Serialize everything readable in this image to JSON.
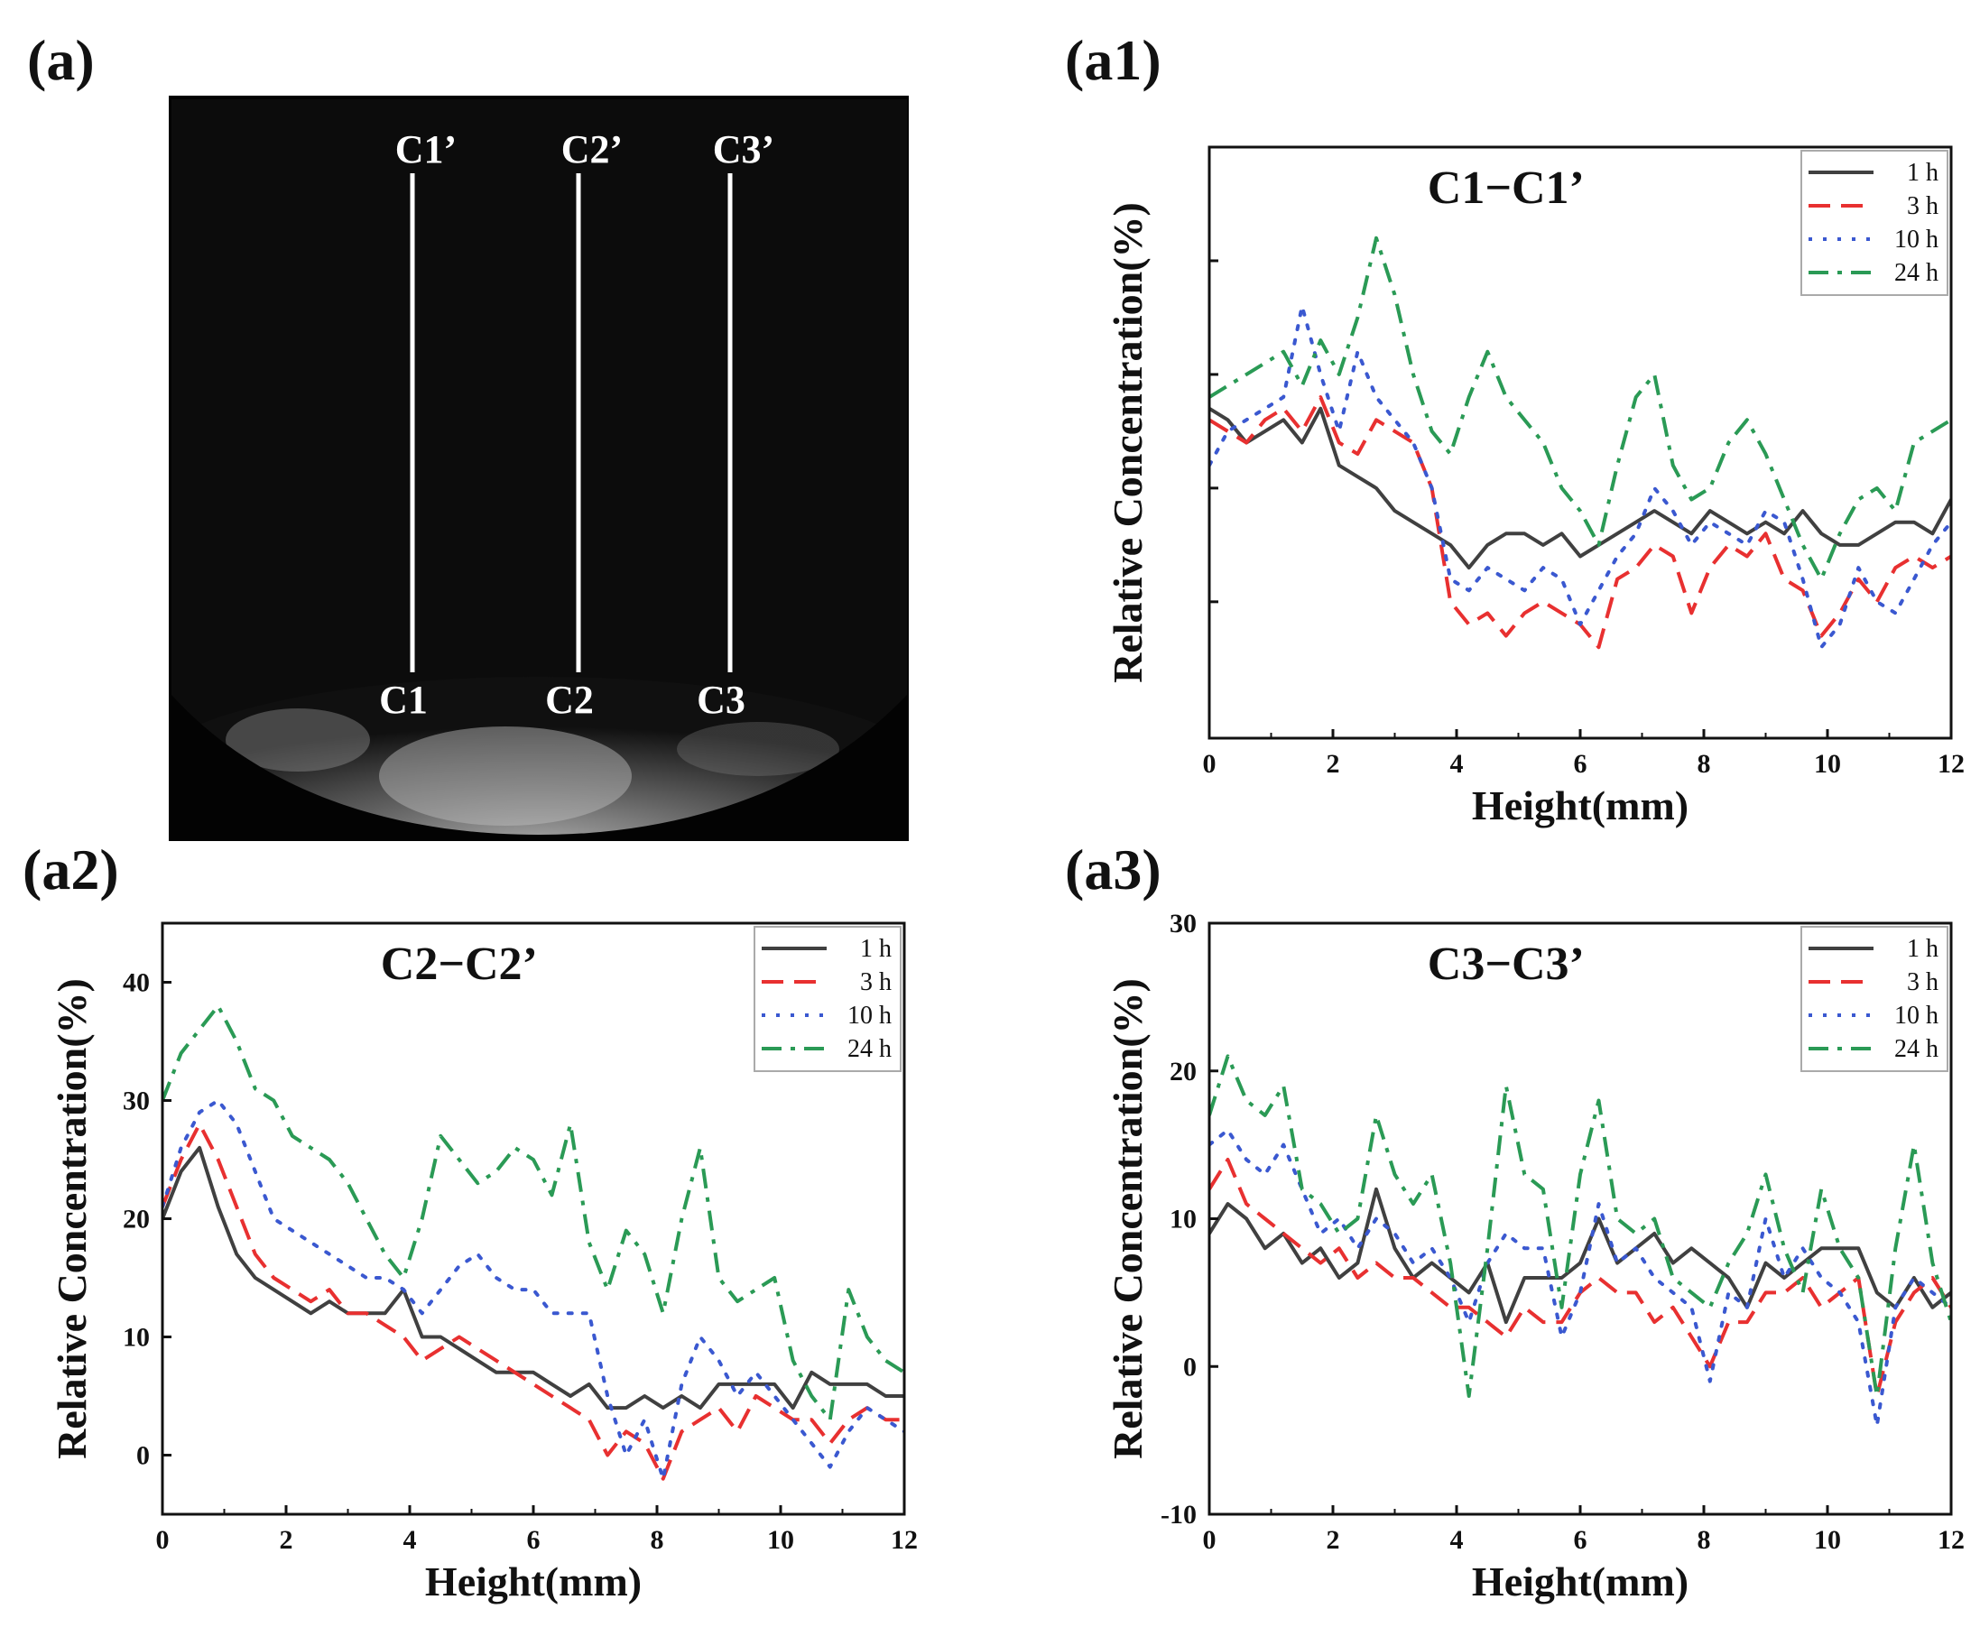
{
  "panel_labels": {
    "a": "(a)",
    "a1": "(a1)",
    "a2": "(a2)",
    "a3": "(a3)"
  },
  "image_panel": {
    "description_label": "",
    "lines": [
      {
        "top": "C1’",
        "bottom": "C1"
      },
      {
        "top": "C2’",
        "bottom": "C2"
      },
      {
        "top": "C3’",
        "bottom": "C3"
      }
    ]
  },
  "chart_data": [
    {
      "id": "a1",
      "type": "line",
      "title": "C1−C1’",
      "xlabel": "Height(mm)",
      "ylabel": "Relative Concentration(%)",
      "xlim": [
        0,
        12
      ],
      "ylim": [
        -12,
        40
      ],
      "xticks": [
        "0",
        "2",
        "4",
        "6",
        "8",
        "10",
        "12"
      ],
      "yticks": [],
      "grid": false,
      "legend_position": "top-right",
      "series": [
        {
          "name": "1 h",
          "color": "#404040",
          "dash": "solid",
          "x": [
            0,
            0.3,
            0.6,
            0.9,
            1.2,
            1.5,
            1.8,
            2.1,
            2.4,
            2.7,
            3.0,
            3.3,
            3.6,
            3.9,
            4.2,
            4.5,
            4.8,
            5.1,
            5.4,
            5.7,
            6.0,
            6.3,
            6.6,
            6.9,
            7.2,
            7.5,
            7.8,
            8.1,
            8.4,
            8.7,
            9.0,
            9.3,
            9.6,
            9.9,
            10.2,
            10.5,
            10.8,
            11.1,
            11.4,
            11.7,
            12
          ],
          "y": [
            17,
            16,
            14,
            15,
            16,
            14,
            17,
            12,
            11,
            10,
            8,
            7,
            6,
            5,
            3,
            5,
            6,
            6,
            5,
            6,
            4,
            5,
            6,
            7,
            8,
            7,
            6,
            8,
            7,
            6,
            7,
            6,
            8,
            6,
            5,
            5,
            6,
            7,
            7,
            6,
            9
          ]
        },
        {
          "name": "3 h",
          "color": "#e83030",
          "dash": "dashed",
          "x": [
            0,
            0.3,
            0.6,
            0.9,
            1.2,
            1.5,
            1.8,
            2.1,
            2.4,
            2.7,
            3.0,
            3.3,
            3.6,
            3.9,
            4.2,
            4.5,
            4.8,
            5.1,
            5.4,
            5.7,
            6.0,
            6.3,
            6.6,
            6.9,
            7.2,
            7.5,
            7.8,
            8.1,
            8.4,
            8.7,
            9.0,
            9.3,
            9.6,
            9.9,
            10.2,
            10.5,
            10.8,
            11.1,
            11.4,
            11.7,
            12
          ],
          "y": [
            16,
            15,
            14,
            16,
            17,
            15,
            18,
            14,
            13,
            16,
            15,
            14,
            10,
            0,
            -2,
            -1,
            -3,
            -1,
            0,
            -1,
            -2,
            -4,
            2,
            3,
            5,
            4,
            -1,
            3,
            5,
            4,
            6,
            2,
            1,
            -3,
            -1,
            2,
            0,
            3,
            4,
            3,
            4
          ]
        },
        {
          "name": "10 h",
          "color": "#3a58d0",
          "dash": "dotted",
          "x": [
            0,
            0.3,
            0.6,
            0.9,
            1.2,
            1.5,
            1.8,
            2.1,
            2.4,
            2.7,
            3.0,
            3.3,
            3.6,
            3.9,
            4.2,
            4.5,
            4.8,
            5.1,
            5.4,
            5.7,
            6.0,
            6.3,
            6.6,
            6.9,
            7.2,
            7.5,
            7.8,
            8.1,
            8.4,
            8.7,
            9.0,
            9.3,
            9.6,
            9.9,
            10.2,
            10.5,
            10.8,
            11.1,
            11.4,
            11.7,
            12
          ],
          "y": [
            12,
            15,
            16,
            17,
            18,
            26,
            20,
            15,
            22,
            18,
            16,
            14,
            10,
            2,
            1,
            3,
            2,
            1,
            3,
            2,
            -2,
            1,
            4,
            6,
            10,
            8,
            5,
            7,
            6,
            5,
            8,
            7,
            2,
            -4,
            -2,
            3,
            0,
            -1,
            2,
            5,
            7
          ]
        },
        {
          "name": "24 h",
          "color": "#2a9a55",
          "dash": "dashdot",
          "x": [
            0,
            0.3,
            0.6,
            0.9,
            1.2,
            1.5,
            1.8,
            2.1,
            2.4,
            2.7,
            3.0,
            3.3,
            3.6,
            3.9,
            4.2,
            4.5,
            4.8,
            5.1,
            5.4,
            5.7,
            6.0,
            6.3,
            6.6,
            6.9,
            7.2,
            7.5,
            7.8,
            8.1,
            8.4,
            8.7,
            9.0,
            9.3,
            9.6,
            9.9,
            10.2,
            10.5,
            10.8,
            11.1,
            11.4,
            11.7,
            12
          ],
          "y": [
            18,
            19,
            20,
            21,
            22,
            19,
            23,
            20,
            25,
            32,
            27,
            20,
            15,
            13,
            18,
            22,
            18,
            16,
            14,
            10,
            8,
            5,
            12,
            18,
            20,
            12,
            9,
            10,
            14,
            16,
            13,
            9,
            5,
            2,
            6,
            9,
            10,
            8,
            14,
            15,
            16
          ]
        }
      ]
    },
    {
      "id": "a2",
      "type": "line",
      "title": "C2−C2’",
      "xlabel": "Height(mm)",
      "ylabel": "Relative Concentration(%)",
      "xlim": [
        0,
        12
      ],
      "ylim": [
        -5,
        45
      ],
      "xticks": [
        "0",
        "2",
        "4",
        "6",
        "8",
        "10",
        "12"
      ],
      "yticks": [
        "0",
        "10",
        "20",
        "30",
        "40"
      ],
      "grid": false,
      "legend_position": "top-right",
      "series": [
        {
          "name": "1 h",
          "color": "#404040",
          "dash": "solid",
          "x": [
            0,
            0.3,
            0.6,
            0.9,
            1.2,
            1.5,
            1.8,
            2.1,
            2.4,
            2.7,
            3.0,
            3.3,
            3.6,
            3.9,
            4.2,
            4.5,
            4.8,
            5.1,
            5.4,
            5.7,
            6.0,
            6.3,
            6.6,
            6.9,
            7.2,
            7.5,
            7.8,
            8.1,
            8.4,
            8.7,
            9.0,
            9.3,
            9.6,
            9.9,
            10.2,
            10.5,
            10.8,
            11.1,
            11.4,
            11.7,
            12
          ],
          "y": [
            20,
            24,
            26,
            21,
            17,
            15,
            14,
            13,
            12,
            13,
            12,
            12,
            12,
            14,
            10,
            10,
            9,
            8,
            7,
            7,
            7,
            6,
            5,
            6,
            4,
            4,
            5,
            4,
            5,
            4,
            6,
            6,
            6,
            6,
            4,
            7,
            6,
            6,
            6,
            5,
            5
          ]
        },
        {
          "name": "3 h",
          "color": "#e83030",
          "dash": "dashed",
          "x": [
            0,
            0.3,
            0.6,
            0.9,
            1.2,
            1.5,
            1.8,
            2.1,
            2.4,
            2.7,
            3.0,
            3.3,
            3.6,
            3.9,
            4.2,
            4.5,
            4.8,
            5.1,
            5.4,
            5.7,
            6.0,
            6.3,
            6.6,
            6.9,
            7.2,
            7.5,
            7.8,
            8.1,
            8.4,
            8.7,
            9.0,
            9.3,
            9.6,
            9.9,
            10.2,
            10.5,
            10.8,
            11.1,
            11.4,
            11.7,
            12
          ],
          "y": [
            21,
            25,
            28,
            25,
            21,
            17,
            15,
            14,
            13,
            14,
            12,
            12,
            11,
            10,
            8,
            9,
            10,
            9,
            8,
            7,
            6,
            5,
            4,
            3,
            0,
            2,
            1,
            -2,
            2,
            3,
            4,
            2,
            5,
            4,
            3,
            3,
            1,
            3,
            4,
            3,
            3
          ]
        },
        {
          "name": "10 h",
          "color": "#3a58d0",
          "dash": "dotted",
          "x": [
            0,
            0.3,
            0.6,
            0.9,
            1.2,
            1.5,
            1.8,
            2.1,
            2.4,
            2.7,
            3.0,
            3.3,
            3.6,
            3.9,
            4.2,
            4.5,
            4.8,
            5.1,
            5.4,
            5.7,
            6.0,
            6.3,
            6.6,
            6.9,
            7.2,
            7.5,
            7.8,
            8.1,
            8.4,
            8.7,
            9.0,
            9.3,
            9.6,
            9.9,
            10.2,
            10.5,
            10.8,
            11.1,
            11.4,
            11.7,
            12
          ],
          "y": [
            21,
            26,
            29,
            30,
            28,
            24,
            20,
            19,
            18,
            17,
            16,
            15,
            15,
            14,
            12,
            14,
            16,
            17,
            15,
            14,
            14,
            12,
            12,
            12,
            5,
            0,
            3,
            -2,
            6,
            10,
            8,
            5,
            7,
            5,
            3,
            1,
            -1,
            2,
            4,
            3,
            2
          ]
        },
        {
          "name": "24 h",
          "color": "#2a9a55",
          "dash": "dashdot",
          "x": [
            0,
            0.3,
            0.6,
            0.9,
            1.2,
            1.5,
            1.8,
            2.1,
            2.4,
            2.7,
            3.0,
            3.3,
            3.6,
            3.9,
            4.2,
            4.5,
            4.8,
            5.1,
            5.4,
            5.7,
            6.0,
            6.3,
            6.6,
            6.9,
            7.2,
            7.5,
            7.8,
            8.1,
            8.4,
            8.7,
            9.0,
            9.3,
            9.6,
            9.9,
            10.2,
            10.5,
            10.8,
            11.1,
            11.4,
            11.7,
            12
          ],
          "y": [
            30,
            34,
            36,
            38,
            35,
            31,
            30,
            27,
            26,
            25,
            23,
            20,
            17,
            15,
            20,
            27,
            25,
            23,
            24,
            26,
            25,
            22,
            28,
            18,
            14,
            19,
            17,
            12,
            20,
            26,
            15,
            13,
            14,
            15,
            8,
            5,
            3,
            14,
            10,
            8,
            7
          ]
        }
      ]
    },
    {
      "id": "a3",
      "type": "line",
      "title": "C3−C3’",
      "xlabel": "Height(mm)",
      "ylabel": "Relative Concentration(%)",
      "xlim": [
        0,
        12
      ],
      "ylim": [
        -10,
        30
      ],
      "xticks": [
        "0",
        "2",
        "4",
        "6",
        "8",
        "10",
        "12"
      ],
      "yticks": [
        "-10",
        "0",
        "10",
        "20",
        "30"
      ],
      "grid": false,
      "legend_position": "top-right",
      "series": [
        {
          "name": "1 h",
          "color": "#404040",
          "dash": "solid",
          "x": [
            0,
            0.3,
            0.6,
            0.9,
            1.2,
            1.5,
            1.8,
            2.1,
            2.4,
            2.7,
            3.0,
            3.3,
            3.6,
            3.9,
            4.2,
            4.5,
            4.8,
            5.1,
            5.4,
            5.7,
            6.0,
            6.3,
            6.6,
            6.9,
            7.2,
            7.5,
            7.8,
            8.1,
            8.4,
            8.7,
            9.0,
            9.3,
            9.6,
            9.9,
            10.2,
            10.5,
            10.8,
            11.1,
            11.4,
            11.7,
            12
          ],
          "y": [
            9,
            11,
            10,
            8,
            9,
            7,
            8,
            6,
            7,
            12,
            8,
            6,
            7,
            6,
            5,
            7,
            3,
            6,
            6,
            6,
            7,
            10,
            7,
            8,
            9,
            7,
            8,
            7,
            6,
            4,
            7,
            6,
            7,
            8,
            8,
            8,
            5,
            4,
            6,
            4,
            5
          ]
        },
        {
          "name": "3 h",
          "color": "#e83030",
          "dash": "dashed",
          "x": [
            0,
            0.3,
            0.6,
            0.9,
            1.2,
            1.5,
            1.8,
            2.1,
            2.4,
            2.7,
            3.0,
            3.3,
            3.6,
            3.9,
            4.2,
            4.5,
            4.8,
            5.1,
            5.4,
            5.7,
            6.0,
            6.3,
            6.6,
            6.9,
            7.2,
            7.5,
            7.8,
            8.1,
            8.4,
            8.7,
            9.0,
            9.3,
            9.6,
            9.9,
            10.2,
            10.5,
            10.8,
            11.1,
            11.4,
            11.7,
            12
          ],
          "y": [
            12,
            14,
            11,
            10,
            9,
            8,
            7,
            8,
            6,
            7,
            6,
            6,
            5,
            4,
            4,
            3,
            2,
            4,
            3,
            3,
            5,
            6,
            5,
            5,
            3,
            4,
            2,
            0,
            3,
            3,
            5,
            5,
            6,
            4,
            5,
            6,
            -2,
            3,
            5,
            6,
            4
          ]
        },
        {
          "name": "10 h",
          "color": "#3a58d0",
          "dash": "dotted",
          "x": [
            0,
            0.3,
            0.6,
            0.9,
            1.2,
            1.5,
            1.8,
            2.1,
            2.4,
            2.7,
            3.0,
            3.3,
            3.6,
            3.9,
            4.2,
            4.5,
            4.8,
            5.1,
            5.4,
            5.7,
            6.0,
            6.3,
            6.6,
            6.9,
            7.2,
            7.5,
            7.8,
            8.1,
            8.4,
            8.7,
            9.0,
            9.3,
            9.6,
            9.9,
            10.2,
            10.5,
            10.8,
            11.1,
            11.4,
            11.7,
            12
          ],
          "y": [
            15,
            16,
            14,
            13,
            15,
            12,
            9,
            10,
            8,
            10,
            9,
            7,
            8,
            6,
            3,
            7,
            9,
            8,
            8,
            2,
            5,
            11,
            7,
            8,
            6,
            5,
            4,
            -1,
            5,
            4,
            10,
            6,
            8,
            6,
            5,
            3,
            -4,
            4,
            6,
            5,
            4
          ]
        },
        {
          "name": "24 h",
          "color": "#2a9a55",
          "dash": "dashdot",
          "x": [
            0,
            0.3,
            0.6,
            0.9,
            1.2,
            1.5,
            1.8,
            2.1,
            2.4,
            2.7,
            3.0,
            3.3,
            3.6,
            3.9,
            4.2,
            4.5,
            4.8,
            5.1,
            5.4,
            5.7,
            6.0,
            6.3,
            6.6,
            6.9,
            7.2,
            7.5,
            7.8,
            8.1,
            8.4,
            8.7,
            9.0,
            9.3,
            9.6,
            9.9,
            10.2,
            10.5,
            10.8,
            11.1,
            11.4,
            11.7,
            12
          ],
          "y": [
            17,
            21,
            18,
            17,
            19,
            12,
            11,
            9,
            10,
            17,
            13,
            11,
            13,
            7,
            -2,
            8,
            19,
            13,
            12,
            4,
            13,
            18,
            10,
            9,
            10,
            6,
            5,
            4,
            7,
            9,
            13,
            8,
            5,
            12,
            8,
            6,
            -2,
            8,
            15,
            7,
            3
          ]
        }
      ]
    }
  ]
}
